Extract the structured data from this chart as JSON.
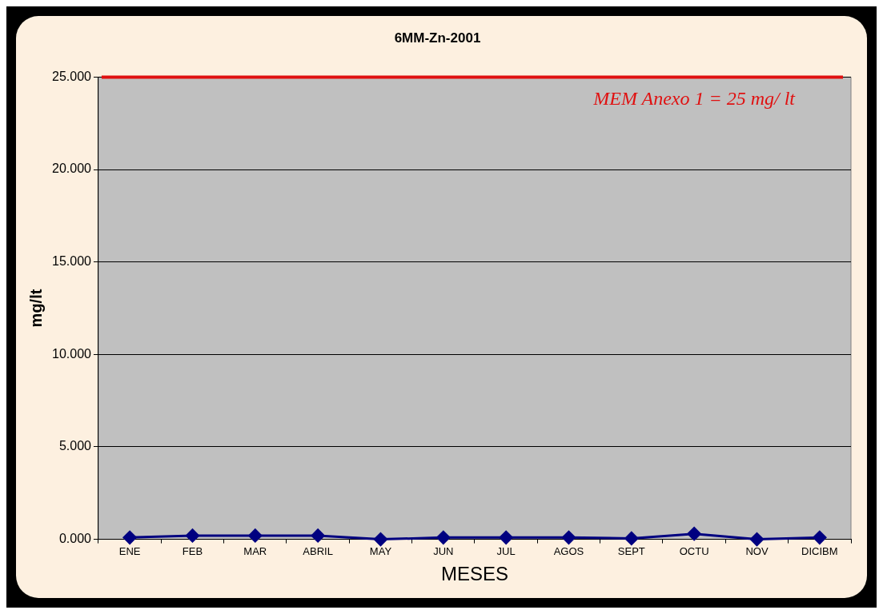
{
  "chart_data": {
    "type": "line",
    "title": "6MM-Zn-2001",
    "xlabel": "MESES",
    "ylabel": "mg/lt",
    "categories": [
      "ENE",
      "FEB",
      "MAR",
      "ABRIL",
      "MAY",
      "JUN",
      "JUL",
      "AGOS",
      "SEPT",
      "OCTU",
      "NOV",
      "DICIBM"
    ],
    "series": [
      {
        "color": "#000080",
        "values": [
          0.1,
          0.2,
          0.2,
          0.2,
          0.0,
          0.1,
          0.1,
          0.1,
          0.05,
          0.3,
          0.0,
          0.1
        ]
      }
    ],
    "ylim": [
      0,
      25
    ],
    "yticks": [
      {
        "value": 0,
        "label": "0.000"
      },
      {
        "value": 5,
        "label": "5.000"
      },
      {
        "value": 10,
        "label": "10.000"
      },
      {
        "value": 15,
        "label": "15.000"
      },
      {
        "value": 20,
        "label": "20.000"
      },
      {
        "value": 25,
        "label": "25.000"
      }
    ],
    "ref_lines": [
      {
        "axis": "y",
        "value": 25,
        "label": "MEM Anexo 1 = 25 mg/ lt",
        "color": "#e01010"
      }
    ],
    "grid": "y",
    "marker": "diamond",
    "line_style": "solid",
    "legend": false
  }
}
